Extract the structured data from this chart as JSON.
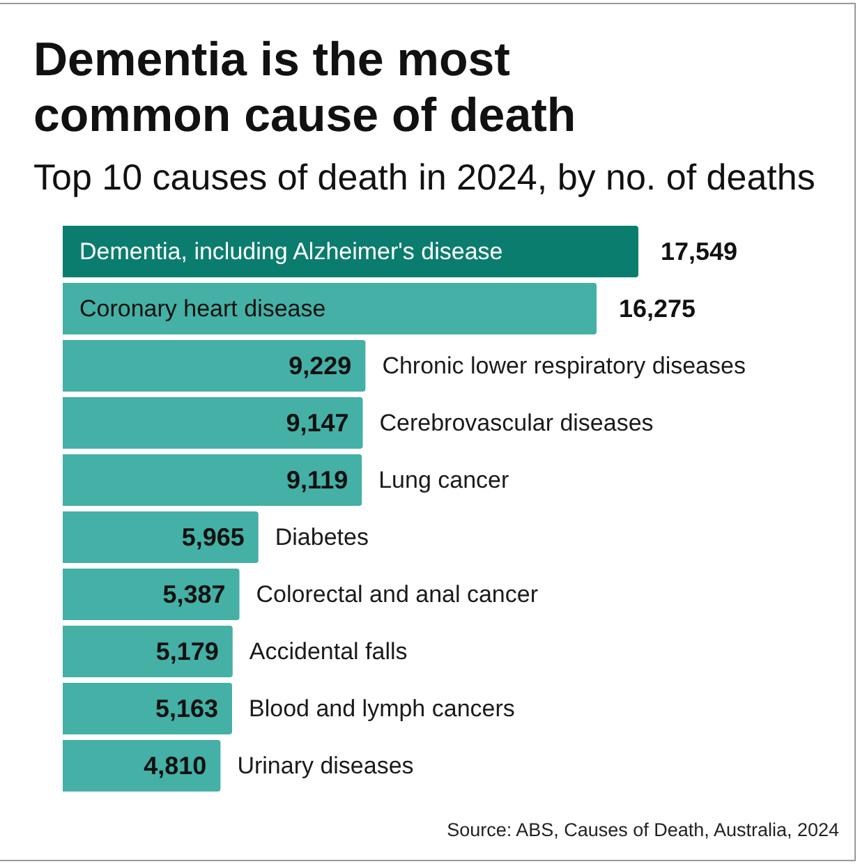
{
  "chart_data": {
    "type": "bar",
    "orientation": "horizontal",
    "title": "Dementia is the most common cause of death",
    "subtitle": "Top 10 causes of death in 2024, by no. of deaths",
    "categories": [
      "Dementia, including Alzheimer's disease",
      "Coronary heart disease",
      "Chronic lower respiratory diseases",
      "Cerebrovascular diseases",
      "Lung cancer",
      "Diabetes",
      "Colorectal and anal cancer",
      "Accidental falls",
      "Blood and lymph cancers",
      "Urinary diseases"
    ],
    "values": [
      17549,
      16275,
      9229,
      9147,
      9119,
      5965,
      5387,
      5179,
      5163,
      4810
    ],
    "colors": [
      "#0b7d6e",
      "#45b0a5",
      "#45b0a5",
      "#45b0a5",
      "#45b0a5",
      "#45b0a5",
      "#45b0a5",
      "#45b0a5",
      "#45b0a5",
      "#45b0a5"
    ],
    "value_labels": [
      "17,549",
      "16,275",
      "9,229",
      "9,147",
      "9,119",
      "5,965",
      "5,387",
      "5,179",
      "5,163",
      "4,810"
    ],
    "annotations": [
      "Source: ABS, Causes of Death, Australia, 2024"
    ]
  }
}
